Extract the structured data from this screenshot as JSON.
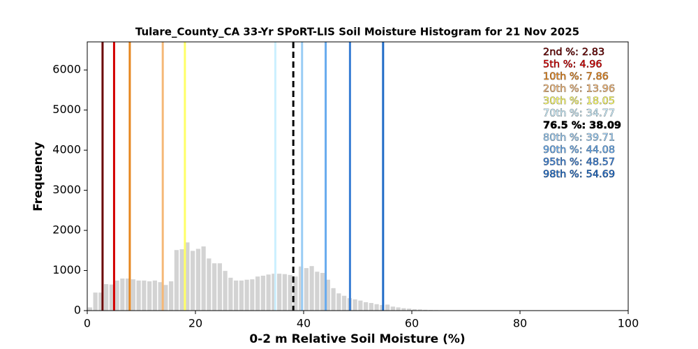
{
  "chart_data": {
    "type": "histogram",
    "title": "Tulare_County_CA 33-Yr SPoRT-LIS Soil Moisture Histogram for 21 Nov 2025",
    "x_label": "0-2 m Relative Soil Moisture (%)",
    "y_label": "Frequency",
    "color": "#d3d3d3",
    "bins": [
      0,
      1,
      2,
      3,
      4,
      5,
      6,
      7,
      8,
      9,
      10,
      11,
      12,
      13,
      14,
      15,
      16,
      17,
      18,
      19,
      20,
      21,
      22,
      23,
      24,
      25,
      26,
      27,
      28,
      29,
      30,
      31,
      32,
      33,
      34,
      35,
      36,
      37,
      38,
      39,
      40,
      41,
      42,
      43,
      44,
      45,
      46,
      47,
      48,
      49,
      50,
      51,
      52,
      53,
      54,
      55,
      56,
      57,
      58,
      59,
      60,
      61,
      62,
      63,
      64,
      65,
      66,
      67,
      68,
      69,
      70
    ],
    "values": [
      80,
      450,
      450,
      660,
      650,
      750,
      800,
      800,
      780,
      750,
      750,
      730,
      750,
      710,
      640,
      730,
      1510,
      1530,
      1700,
      1490,
      1540,
      1600,
      1300,
      1180,
      1180,
      990,
      820,
      750,
      750,
      770,
      780,
      850,
      870,
      900,
      920,
      920,
      910,
      890,
      850,
      1100,
      1060,
      1110,
      970,
      940,
      770,
      560,
      430,
      370,
      310,
      280,
      250,
      210,
      190,
      160,
      140,
      150,
      100,
      80,
      60,
      50,
      35,
      30,
      20,
      15,
      12,
      10,
      8,
      6,
      5,
      3
    ],
    "percentiles": [
      {
        "label": "2nd %:",
        "value": 2.83,
        "color": "#6b0000"
      },
      {
        "label": "5th %:",
        "value": 4.96,
        "color": "#d40000"
      },
      {
        "label": "10th %:",
        "value": 7.86,
        "color": "#e6861e"
      },
      {
        "label": "20th %:",
        "value": 13.96,
        "color": "#f5b877"
      },
      {
        "label": "30th %:",
        "value": 18.05,
        "color": "#ffff66"
      },
      {
        "label": "70th %:",
        "value": 34.77,
        "color": "#ccf0ff"
      },
      {
        "label": "76.5 %:",
        "value": 38.09,
        "color": "#000000",
        "dashed": true
      },
      {
        "label": "80th %:",
        "value": 39.71,
        "color": "#99ccf5"
      },
      {
        "label": "90th %:",
        "value": 44.08,
        "color": "#66aaee"
      },
      {
        "label": "95th %:",
        "value": 48.57,
        "color": "#3a7fd5"
      },
      {
        "label": "98th %:",
        "value": 54.69,
        "color": "#1f6bc7"
      }
    ],
    "xlim": [
      0,
      100
    ],
    "xticks": [
      0,
      20,
      40,
      60,
      80,
      100
    ],
    "ylim": [
      0,
      6700
    ],
    "yticks": [
      0,
      1000,
      2000,
      3000,
      4000,
      5000,
      6000
    ]
  }
}
